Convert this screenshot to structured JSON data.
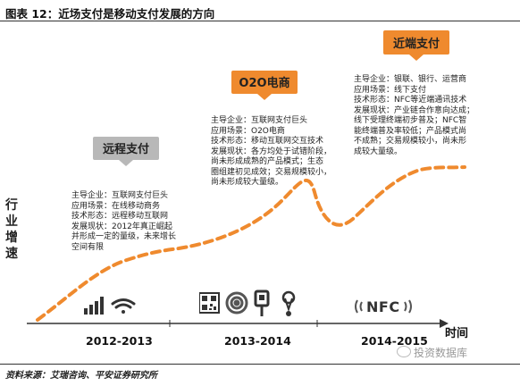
{
  "figure_title": "图表 12：近场支付是移动支付发展的方向",
  "source": "资料来源：艾瑞咨询、平安证券研究所",
  "watermark": "投资数据库",
  "axis": {
    "y_label_chars": [
      "行",
      "业",
      "增",
      "速"
    ],
    "x_label": "时间"
  },
  "colors": {
    "curve": "#ef8a2e",
    "badge_gray": "#b8b8b8",
    "badge_orange": "#ef8a2e",
    "badge_text": "#222222"
  },
  "stages": [
    {
      "badge": "远程支付",
      "period": "2012-2013",
      "lines": [
        "主导企业：互联网支付巨头",
        "应用场景：在线移动商务",
        "技术形态：远程移动互联网",
        "发展现状：2012年真正崛起",
        "并形成一定的量级，未来增长",
        "空间有限"
      ],
      "icons": [
        "signal-bars-icon",
        "wifi-icon"
      ]
    },
    {
      "badge": "O2O电商",
      "period": "2013-2014",
      "lines": [
        "主导企业：互联网支付巨头",
        "应用场景：O2O电商",
        "技术形态：移动互联网交互技术",
        "发展现状：各方均处于试错阶段，",
        "尚未形成成熟的产品模式；生态",
        "圈组建初见成效；交易规模较小，",
        "尚未形成较大量级。"
      ],
      "icons": [
        "qr-code-icon",
        "sound-wave-icon",
        "beacon-icon",
        "location-pin-icon"
      ]
    },
    {
      "badge": "近端支付",
      "period": "2014-2015",
      "lines": [
        "主导企业：银联、银行、运营商",
        "应用场景：线下支付",
        "技术形态：NFC等近端通讯技术",
        "发展现状：产业链合作意向达成；",
        "线下受理终端初步普及；NFC智",
        "能终端普及率较低；产品模式尚",
        "不成熟；交易规模较小，尚未形",
        "成较大量级。"
      ],
      "icons": [
        "nfc-icon"
      ],
      "nfc_label": "NFC"
    }
  ]
}
